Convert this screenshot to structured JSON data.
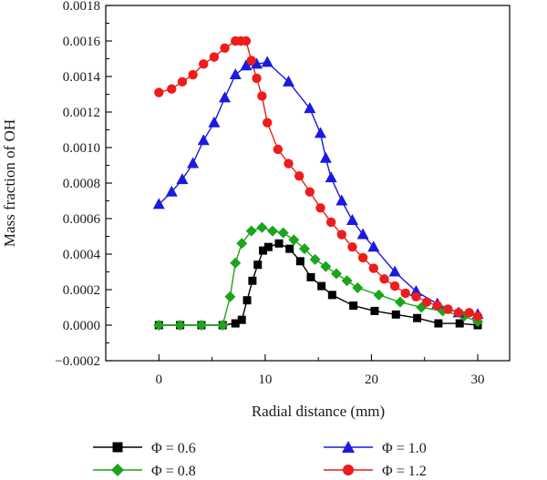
{
  "chart_data": {
    "type": "line",
    "xlabel": "Radial distance (mm)",
    "ylabel": "Mass fraction of OH",
    "xlim": [
      -5,
      33
    ],
    "ylim": [
      -0.0002,
      0.0018
    ],
    "x_ticks": [
      0,
      10,
      20,
      30
    ],
    "x_tick_labels": [
      "0",
      "10",
      "20",
      "30"
    ],
    "y_ticks": [
      -0.0002,
      0.0,
      0.0002,
      0.0004,
      0.0006,
      0.0008,
      0.001,
      0.0012,
      0.0014,
      0.0016,
      0.0018
    ],
    "y_tick_labels": [
      "−0.0002",
      "0.0000",
      "0.0002",
      "0.0004",
      "0.0006",
      "0.0008",
      "0.0010",
      "0.0012",
      "0.0014",
      "0.0016",
      "0.0018"
    ],
    "grid": false,
    "legend_position": "bottom",
    "series": [
      {
        "name": "Φ = 0.6",
        "color": "#000000",
        "marker": "square",
        "x": [
          0,
          2,
          4,
          6,
          7.2,
          7.8,
          8.3,
          8.8,
          9.3,
          9.8,
          10.3,
          11.3,
          12.3,
          13.3,
          14.3,
          15.3,
          16.3,
          18.3,
          20.3,
          22.3,
          24.3,
          26.3,
          28.3,
          30
        ],
        "y": [
          0,
          0,
          0,
          0,
          1e-05,
          3e-05,
          0.00014,
          0.00025,
          0.00034,
          0.00042,
          0.00044,
          0.00046,
          0.00043,
          0.00036,
          0.00027,
          0.00022,
          0.00017,
          0.00011,
          8e-05,
          6e-05,
          4e-05,
          1e-05,
          1e-05,
          0.0
        ]
      },
      {
        "name": "Φ = 0.8",
        "color": "#1aa51a",
        "marker": "diamond",
        "x": [
          0,
          2,
          4,
          6,
          6.7,
          7.2,
          7.8,
          8.7,
          9.7,
          10.7,
          11.7,
          12.7,
          13.7,
          14.7,
          15.7,
          16.7,
          17.7,
          18.7,
          20.7,
          22.7,
          24.7,
          26.7,
          28.7,
          30
        ],
        "y": [
          0,
          0,
          0,
          0,
          0.00016,
          0.00035,
          0.00046,
          0.00053,
          0.00055,
          0.00053,
          0.00052,
          0.00048,
          0.00043,
          0.00037,
          0.00033,
          0.00029,
          0.00025,
          0.00021,
          0.00017,
          0.00013,
          0.0001,
          8e-05,
          5e-05,
          2e-05
        ]
      },
      {
        "name": "Φ = 1.0",
        "color": "#1a1ae0",
        "marker": "triangle",
        "x": [
          0,
          1.2,
          2.2,
          3.2,
          4.2,
          5.2,
          6.2,
          7.2,
          8.2,
          9.2,
          10.2,
          12.2,
          14.2,
          15.2,
          15.7,
          16.2,
          17.2,
          18.2,
          19.2,
          20.2,
          22.2,
          24.2,
          26.2,
          28.2,
          30
        ],
        "y": [
          0.00068,
          0.00075,
          0.00082,
          0.00091,
          0.00104,
          0.00114,
          0.00128,
          0.00141,
          0.00146,
          0.00147,
          0.00148,
          0.00137,
          0.00122,
          0.00108,
          0.00094,
          0.00083,
          0.0007,
          0.00059,
          0.00051,
          0.00044,
          0.0003,
          0.00019,
          0.00012,
          7e-05,
          6e-05
        ]
      },
      {
        "name": "Φ = 1.2",
        "color": "#ee1c1c",
        "marker": "circle",
        "x": [
          0,
          1.2,
          2.2,
          3.2,
          4.2,
          5.2,
          6.2,
          7.2,
          7.7,
          8.2,
          8.7,
          9.2,
          9.7,
          10.2,
          11.2,
          12.2,
          13.2,
          14.2,
          15.2,
          16.2,
          17.2,
          18.2,
          19.2,
          20.2,
          21.2,
          22.2,
          23.2,
          24.2,
          25.2,
          26.2,
          27.2,
          28.2,
          29.2,
          30
        ],
        "y": [
          0.00131,
          0.00133,
          0.00137,
          0.00141,
          0.00147,
          0.00151,
          0.00156,
          0.0016,
          0.0016,
          0.0016,
          0.00149,
          0.00139,
          0.00129,
          0.00114,
          0.00099,
          0.00091,
          0.00084,
          0.00075,
          0.00066,
          0.00058,
          0.00051,
          0.00044,
          0.00038,
          0.00032,
          0.00026,
          0.00022,
          0.00018,
          0.00016,
          0.00013,
          0.00011,
          9e-05,
          7e-05,
          7e-05,
          5e-05
        ]
      }
    ]
  }
}
